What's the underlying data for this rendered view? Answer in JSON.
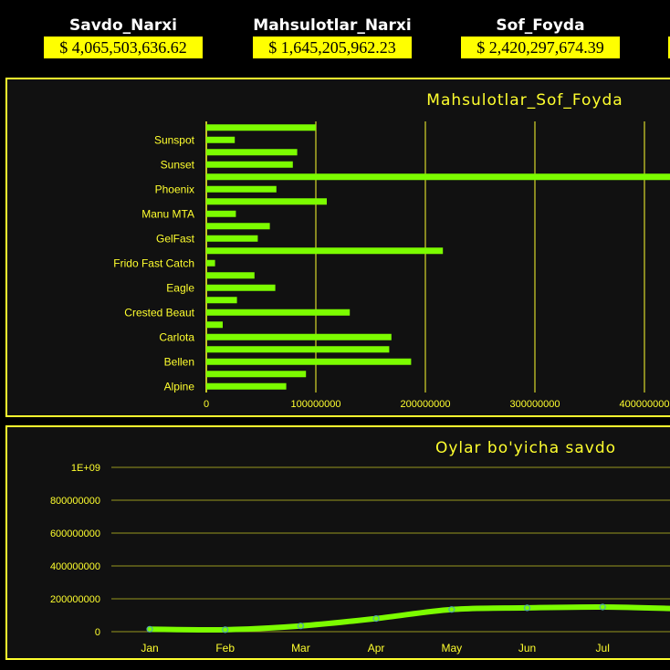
{
  "kpis": [
    {
      "title": "Savdo_Narxi",
      "value": "$ 4,065,503,636.62"
    },
    {
      "title": "Mahsulotlar_Narxi",
      "value": "$ 1,645,205,962.23"
    },
    {
      "title": "Sof_Foyda",
      "value": "$ 2,420,297,674.39"
    }
  ],
  "colors": {
    "accent": "#ffff00",
    "bar": "#7cfc00",
    "line": "#7cfc00",
    "marker": "#4fa8a8",
    "panel_bg": "#111111",
    "page_bg": "#000000"
  },
  "chart_data": [
    {
      "type": "bar",
      "orientation": "horizontal",
      "title": "Mahsulotlar_Sof_Foyda",
      "xlabel": "",
      "ylabel": "",
      "xlim": [
        0,
        420000000
      ],
      "x_ticks": [
        "0",
        "100000000",
        "200000000",
        "300000000",
        "400000000"
      ],
      "grid": true,
      "legend": "none",
      "categories": [
        "Alpine",
        "",
        "Bellen",
        "",
        "Carlota",
        "",
        "Crested Beaut",
        "",
        "Eagle",
        "",
        "Frido Fast Catch",
        "",
        "GelFast",
        "",
        "Manu MTA",
        "",
        "Phoenix",
        "",
        "Sunset",
        "",
        "Sunspot",
        ""
      ],
      "values": [
        73000000,
        91000000,
        187000000,
        167000000,
        169000000,
        15000000,
        131000000,
        28000000,
        63000000,
        44000000,
        8000000,
        216000000,
        47000000,
        58000000,
        27000000,
        110000000,
        64000000,
        430000000,
        79000000,
        83000000,
        26000000,
        100000000
      ]
    },
    {
      "type": "line",
      "title": "Oylar bo'yicha savdo",
      "xlabel": "",
      "ylabel": "",
      "ylim": [
        0,
        1000000000
      ],
      "y_ticks": [
        "0",
        "200000000",
        "400000000",
        "600000000",
        "800000000",
        "1E+09"
      ],
      "grid": true,
      "legend": "none",
      "smooth": true,
      "categories": [
        "Jan",
        "Feb",
        "Mar",
        "Apr",
        "May",
        "Jun",
        "Jul"
      ],
      "series": [
        {
          "values": [
            15000000,
            12000000,
            35000000,
            80000000,
            135000000,
            145000000,
            150000000
          ]
        }
      ]
    }
  ]
}
